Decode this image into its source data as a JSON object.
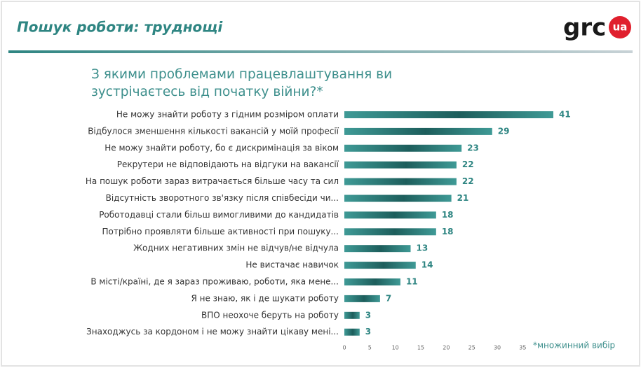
{
  "header": {
    "title": "Пошук роботи: труднощі",
    "logo": "grc",
    "logo_badge": "ua"
  },
  "chart_data": {
    "type": "bar",
    "orientation": "horizontal",
    "title": "З якими проблемами працевлаштування ви зустрічаєтесь від початку війни?*",
    "categories": [
      "Не можу знайти роботу з гідним розміром оплати",
      "Відбулося зменшення кількості вакансій у моїй професії",
      "Не можу знайти роботу, бо є дискримінація за віком",
      "Рекрутери не відповідають на відгуки на вакансії",
      "На пошук роботи зараз витрачається більше часу та сил",
      "Відсутність зворотного зв'язку після співбесіди чи...",
      "Роботодавці стали більш вимогливими до кандидатів",
      "Потрібно проявляти більше активності при пошуку...",
      "Жодних негативних змін не відчув/не відчула",
      "Не вистачає навичок",
      "В місті/країні, де я зараз проживаю, роботи, яка мене...",
      "Я не знаю, як і де шукати роботу",
      "ВПО неохоче беруть на роботу",
      "Знаходжусь за кордоном і не можу знайти цікаву мені..."
    ],
    "values": [
      41,
      29,
      23,
      22,
      22,
      21,
      18,
      18,
      13,
      14,
      11,
      7,
      3,
      3
    ],
    "color": "#2e8582",
    "xlim": [
      0,
      41
    ],
    "xticks": [
      0,
      5,
      10,
      15,
      20,
      25,
      30,
      35
    ],
    "footnote": "*множинний вибір"
  }
}
